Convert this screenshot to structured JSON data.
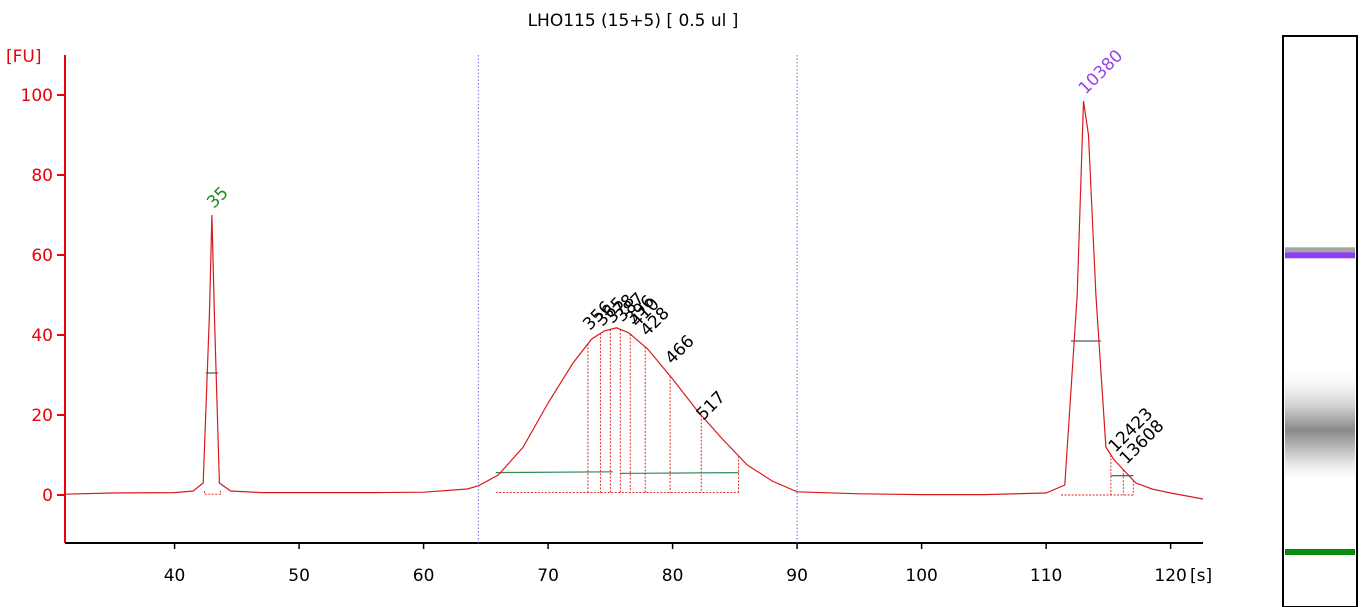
{
  "chart_data": {
    "type": "line",
    "title": "LHO115 (15+5)  [ 0.5 ul ]",
    "ylabel": "[FU]",
    "xlabel": "[s]",
    "xlim": [
      31.2,
      122.6
    ],
    "ylim": [
      -12,
      110
    ],
    "x_ticks": [
      40,
      50,
      60,
      70,
      80,
      90,
      100,
      110,
      120
    ],
    "y_ticks": [
      0,
      20,
      40,
      60,
      80,
      100
    ],
    "grid": false,
    "region_markers": [
      64.4,
      90.0
    ],
    "series": [
      {
        "x": [
          31.2,
          35,
          40,
          41.5,
          42.3,
          42.8,
          43.0,
          43.2,
          43.6,
          44.5,
          47,
          52,
          56,
          60,
          63.5,
          64.4,
          66,
          68,
          70,
          72,
          73.5,
          74.5,
          75.5,
          76.5,
          78,
          80,
          82,
          84,
          86,
          88,
          90,
          95,
          100,
          105,
          110,
          111.5,
          112.5,
          113.0,
          113.4,
          114.0,
          114.8,
          115.4,
          116.3,
          117.2,
          118.5,
          120,
          122.6
        ],
        "y": [
          0.2,
          0.5,
          0.6,
          1.0,
          3.0,
          45.0,
          70.0,
          45.0,
          3.0,
          1.0,
          0.6,
          0.6,
          0.6,
          0.7,
          1.5,
          2.3,
          5.0,
          12.0,
          23.0,
          33.0,
          39.0,
          41.0,
          41.8,
          40.5,
          36.5,
          29.0,
          21.0,
          14.0,
          7.5,
          3.5,
          0.8,
          0.3,
          0.1,
          0.1,
          0.5,
          2.5,
          50.0,
          98.5,
          90.0,
          50.0,
          12.0,
          9.0,
          6.0,
          3.0,
          1.5,
          0.5,
          -1.0
        ]
      }
    ],
    "peaks": [
      {
        "label": "35",
        "x": 43.0,
        "y": 70.0,
        "color": "#1a8a1a"
      },
      {
        "label": "356",
        "x": 73.2,
        "y": 39.5,
        "color": "#000000"
      },
      {
        "label": "365",
        "x": 74.2,
        "y": 40.5,
        "color": "#000000"
      },
      {
        "label": "378",
        "x": 75.0,
        "y": 41.2,
        "color": "#000000"
      },
      {
        "label": "387",
        "x": 75.8,
        "y": 41.6,
        "color": "#000000"
      },
      {
        "label": "396",
        "x": 76.6,
        "y": 41.0,
        "color": "#000000"
      },
      {
        "label": "410",
        "x": 77.0,
        "y": 40.3,
        "color": "#000000"
      },
      {
        "label": "428",
        "x": 77.8,
        "y": 38.0,
        "color": "#000000"
      },
      {
        "label": "466",
        "x": 79.8,
        "y": 31.0,
        "color": "#000000"
      },
      {
        "label": "517",
        "x": 82.3,
        "y": 17.0,
        "color": "#000000"
      },
      {
        "label": "10380",
        "x": 113.0,
        "y": 98.5,
        "color": "#9b45e6"
      },
      {
        "label": "12423",
        "x": 115.4,
        "y": 9.0,
        "color": "#000000"
      },
      {
        "label": "13608",
        "x": 116.3,
        "y": 6.0,
        "color": "#000000"
      }
    ],
    "gel_bands": [
      {
        "position": 0.86,
        "color": "#8a3ff2",
        "type": "upper-marker"
      },
      {
        "position": 0.37,
        "color": "#606060",
        "type": "smear"
      },
      {
        "position": 0.0,
        "color": "#0a8a0a",
        "type": "lower-marker"
      }
    ],
    "colors": {
      "axis": "#e8000b",
      "trace": "#d81a1a",
      "baseline": "#2e8b57",
      "marker_line": "#6b6bd6",
      "upper_marker": "#9b45e6",
      "lower_marker": "#1a8a1a"
    }
  }
}
